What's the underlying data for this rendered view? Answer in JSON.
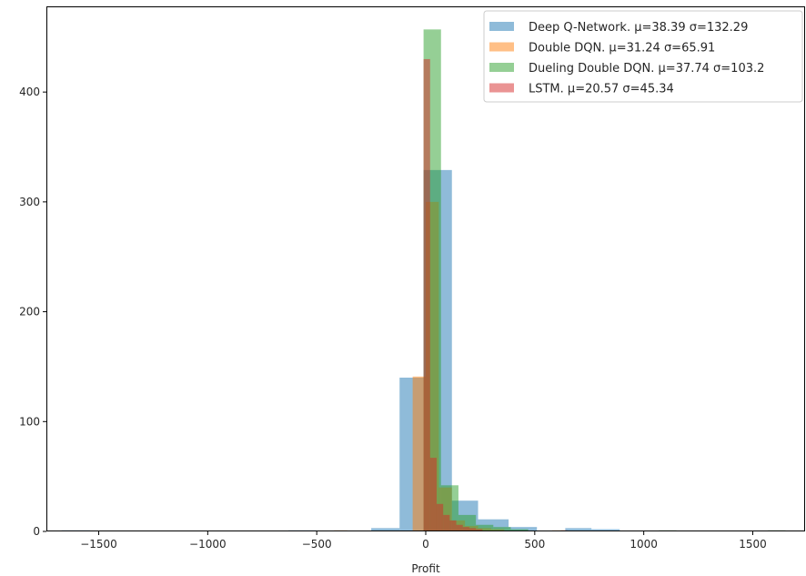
{
  "chart_data": {
    "type": "bar",
    "subtype": "overlapping-histogram",
    "title": "",
    "xlabel": "Profit",
    "ylabel": "",
    "xlim": [
      -1740,
      1740
    ],
    "ylim": [
      0,
      478
    ],
    "xticks": [
      -1500,
      -1000,
      -500,
      0,
      500,
      1000,
      1500
    ],
    "xtick_labels": [
      "−1500",
      "−1000",
      "−500",
      "0",
      "500",
      "1000",
      "1500"
    ],
    "yticks": [
      0,
      100,
      200,
      300,
      400
    ],
    "yticklabels": [
      "0",
      "100",
      "200",
      "300",
      "400"
    ],
    "grid": false,
    "legend_position": "top-right",
    "series": [
      {
        "name": "Deep Q-Network. μ=38.39 σ=132.29",
        "color": "#1f77b4",
        "opacity": 0.5,
        "bins": [
          {
            "x0": -1670,
            "x1": -1540,
            "count": 1
          },
          {
            "x0": -630,
            "x1": -500,
            "count": 1
          },
          {
            "x0": -250,
            "x1": -120,
            "count": 3
          },
          {
            "x0": -120,
            "x1": -10,
            "count": 140
          },
          {
            "x0": -10,
            "x1": 120,
            "count": 329
          },
          {
            "x0": 120,
            "x1": 240,
            "count": 28
          },
          {
            "x0": 240,
            "x1": 380,
            "count": 11
          },
          {
            "x0": 380,
            "x1": 510,
            "count": 4
          },
          {
            "x0": 640,
            "x1": 760,
            "count": 3
          },
          {
            "x0": 760,
            "x1": 890,
            "count": 2
          }
        ]
      },
      {
        "name": "Double DQN. μ=31.24 σ=65.91",
        "color": "#ff7f0e",
        "opacity": 0.5,
        "bins": [
          {
            "x0": -420,
            "x1": -360,
            "count": 1
          },
          {
            "x0": -60,
            "x1": 0,
            "count": 141
          },
          {
            "x0": 0,
            "x1": 60,
            "count": 300
          },
          {
            "x0": 60,
            "x1": 120,
            "count": 40
          },
          {
            "x0": 120,
            "x1": 180,
            "count": 10
          },
          {
            "x0": 180,
            "x1": 240,
            "count": 5
          },
          {
            "x0": 240,
            "x1": 300,
            "count": 3
          },
          {
            "x0": 300,
            "x1": 360,
            "count": 2
          },
          {
            "x0": 580,
            "x1": 640,
            "count": 1
          }
        ]
      },
      {
        "name": "Dueling Double DQN. μ=37.74 σ=103.2",
        "color": "#2ca02c",
        "opacity": 0.5,
        "bins": [
          {
            "x0": -10,
            "x1": 70,
            "count": 457
          },
          {
            "x0": 70,
            "x1": 150,
            "count": 42
          },
          {
            "x0": 150,
            "x1": 230,
            "count": 15
          },
          {
            "x0": 230,
            "x1": 310,
            "count": 6
          },
          {
            "x0": 310,
            "x1": 390,
            "count": 4
          },
          {
            "x0": 390,
            "x1": 470,
            "count": 2
          },
          {
            "x0": 1070,
            "x1": 1150,
            "count": 1
          },
          {
            "x0": 1570,
            "x1": 1650,
            "count": 1
          }
        ]
      },
      {
        "name": "LSTM. μ=20.57 σ=45.34",
        "color": "#d62728",
        "opacity": 0.5,
        "bins": [
          {
            "x0": -10,
            "x1": 20,
            "count": 430
          },
          {
            "x0": 20,
            "x1": 50,
            "count": 67
          },
          {
            "x0": 50,
            "x1": 80,
            "count": 25
          },
          {
            "x0": 80,
            "x1": 110,
            "count": 15
          },
          {
            "x0": 110,
            "x1": 140,
            "count": 10
          },
          {
            "x0": 140,
            "x1": 170,
            "count": 6
          },
          {
            "x0": 170,
            "x1": 200,
            "count": 4
          },
          {
            "x0": 200,
            "x1": 230,
            "count": 3
          },
          {
            "x0": 230,
            "x1": 260,
            "count": 2
          },
          {
            "x0": 620,
            "x1": 650,
            "count": 1
          }
        ]
      }
    ]
  }
}
